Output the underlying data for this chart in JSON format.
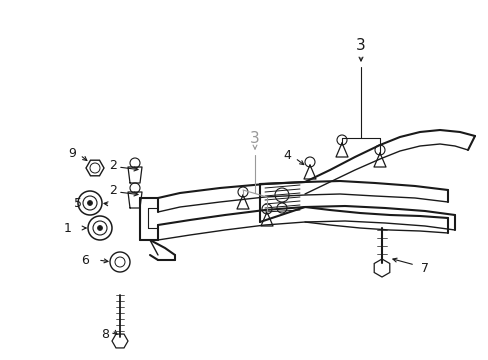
{
  "bg_color": "#ffffff",
  "line_color": "#1a1a1a",
  "gray_line_color": "#999999",
  "fig_width": 4.89,
  "fig_height": 3.6,
  "dpi": 100
}
